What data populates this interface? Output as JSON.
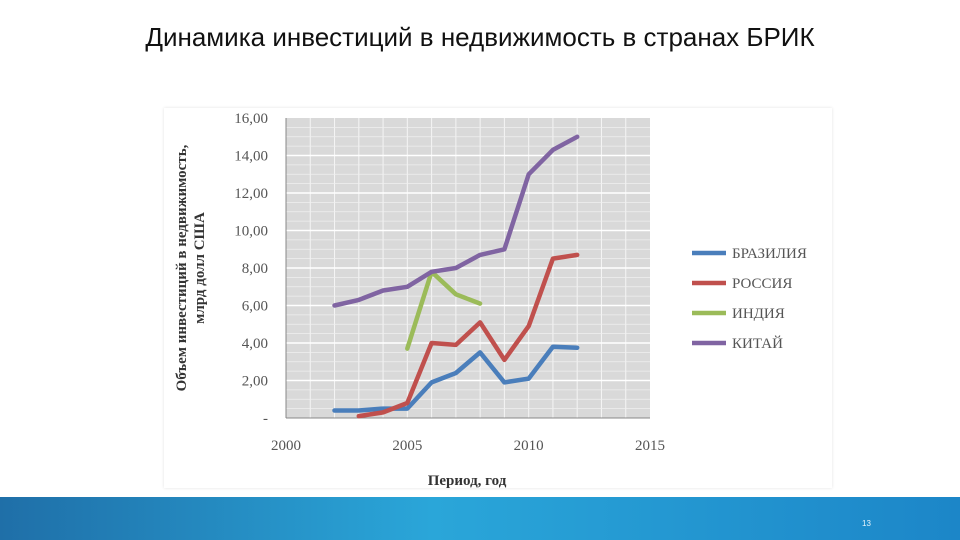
{
  "slide": {
    "title": "Динамика инвестиций в недвижимость в странах БРИК",
    "page_number": "13"
  },
  "chart_data": {
    "type": "line",
    "title": "",
    "xlabel": "Период, год",
    "ylabel_line1": "Объем инвестиций в недвижимость,",
    "ylabel_line2": "млрд долл США",
    "xlim": [
      2000,
      2015
    ],
    "ylim": [
      0,
      16
    ],
    "xticks": [
      "2000",
      "2005",
      "2010",
      "2015"
    ],
    "yticks": [
      "-",
      "2,00",
      "4,00",
      "6,00",
      "8,00",
      "10,00",
      "12,00",
      "14,00",
      "16,00"
    ],
    "grid": true,
    "legend_position": "right",
    "series": [
      {
        "name": "БРАЗИЛИЯ",
        "color": "#4a7ebb",
        "x": [
          2002,
          2003,
          2004,
          2005,
          2006,
          2007,
          2008,
          2009,
          2010,
          2011,
          2012
        ],
        "y": [
          0.4,
          0.4,
          0.5,
          0.5,
          1.9,
          2.4,
          3.5,
          1.9,
          2.1,
          3.8,
          3.75
        ]
      },
      {
        "name": "РОССИЯ",
        "color": "#c0504d",
        "x": [
          2003,
          2004,
          2005,
          2006,
          2007,
          2008,
          2009,
          2010,
          2011,
          2012
        ],
        "y": [
          0.1,
          0.3,
          0.8,
          4.0,
          3.9,
          5.1,
          3.1,
          4.9,
          8.5,
          8.7
        ]
      },
      {
        "name": "ИНДИЯ",
        "color": "#9bbb59",
        "x": [
          2005,
          2006,
          2007,
          2008
        ],
        "y": [
          3.7,
          7.8,
          6.6,
          6.1
        ]
      },
      {
        "name": "КИТАЙ",
        "color": "#8064a2",
        "x": [
          2002,
          2003,
          2004,
          2005,
          2006,
          2007,
          2008,
          2009,
          2010,
          2011,
          2012
        ],
        "y": [
          6.0,
          6.3,
          6.8,
          7.0,
          7.8,
          8.0,
          8.7,
          9.0,
          13.0,
          14.3,
          15.0
        ]
      }
    ]
  }
}
